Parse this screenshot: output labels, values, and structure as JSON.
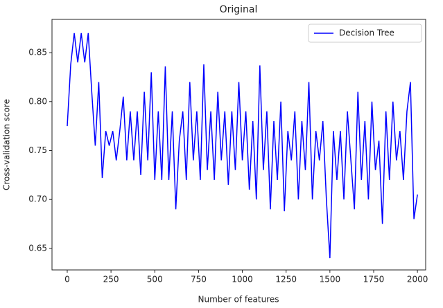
{
  "chart_data": {
    "type": "line",
    "title": "Original",
    "xlabel": "Number of features",
    "ylabel": "Cross-validation score",
    "x": [
      0,
      20,
      40,
      60,
      80,
      100,
      120,
      140,
      160,
      180,
      200,
      220,
      240,
      260,
      280,
      300,
      320,
      340,
      360,
      380,
      400,
      420,
      440,
      460,
      480,
      500,
      520,
      540,
      560,
      580,
      600,
      620,
      640,
      660,
      680,
      700,
      720,
      740,
      760,
      780,
      800,
      820,
      840,
      860,
      880,
      900,
      920,
      940,
      960,
      980,
      1000,
      1020,
      1040,
      1060,
      1080,
      1100,
      1120,
      1140,
      1160,
      1180,
      1200,
      1220,
      1240,
      1260,
      1280,
      1300,
      1320,
      1340,
      1360,
      1380,
      1400,
      1420,
      1440,
      1460,
      1480,
      1500,
      1520,
      1540,
      1560,
      1580,
      1600,
      1620,
      1640,
      1660,
      1680,
      1700,
      1720,
      1740,
      1760,
      1780,
      1800,
      1820,
      1840,
      1860,
      1880,
      1900,
      1920,
      1940,
      1960,
      1980,
      2000
    ],
    "series": [
      {
        "name": "Decision Tree",
        "color": "#0000ff",
        "values": [
          0.775,
          0.838,
          0.87,
          0.84,
          0.87,
          0.84,
          0.87,
          0.81,
          0.755,
          0.82,
          0.722,
          0.77,
          0.755,
          0.77,
          0.74,
          0.77,
          0.805,
          0.74,
          0.79,
          0.74,
          0.79,
          0.725,
          0.81,
          0.74,
          0.83,
          0.72,
          0.79,
          0.72,
          0.836,
          0.72,
          0.79,
          0.69,
          0.76,
          0.79,
          0.72,
          0.82,
          0.74,
          0.79,
          0.72,
          0.838,
          0.73,
          0.79,
          0.72,
          0.81,
          0.74,
          0.79,
          0.715,
          0.79,
          0.73,
          0.82,
          0.74,
          0.79,
          0.71,
          0.78,
          0.7,
          0.837,
          0.73,
          0.79,
          0.69,
          0.78,
          0.72,
          0.8,
          0.688,
          0.77,
          0.74,
          0.79,
          0.7,
          0.78,
          0.73,
          0.82,
          0.7,
          0.77,
          0.74,
          0.78,
          0.7,
          0.64,
          0.77,
          0.72,
          0.77,
          0.7,
          0.79,
          0.74,
          0.69,
          0.81,
          0.72,
          0.78,
          0.7,
          0.8,
          0.73,
          0.76,
          0.675,
          0.79,
          0.72,
          0.8,
          0.74,
          0.77,
          0.72,
          0.79,
          0.82,
          0.68,
          0.705
        ]
      }
    ],
    "xlim": [
      -87,
      2047
    ],
    "ylim": [
      0.628,
      0.884
    ],
    "xticks": [
      0,
      250,
      500,
      750,
      1000,
      1250,
      1500,
      1750,
      2000
    ],
    "yticks": [
      0.65,
      {
        "value": 0.7,
        "label": "0.70"
      },
      0.75,
      {
        "value": 0.8,
        "label": "0.80"
      },
      0.85
    ],
    "legend": "upper right"
  }
}
